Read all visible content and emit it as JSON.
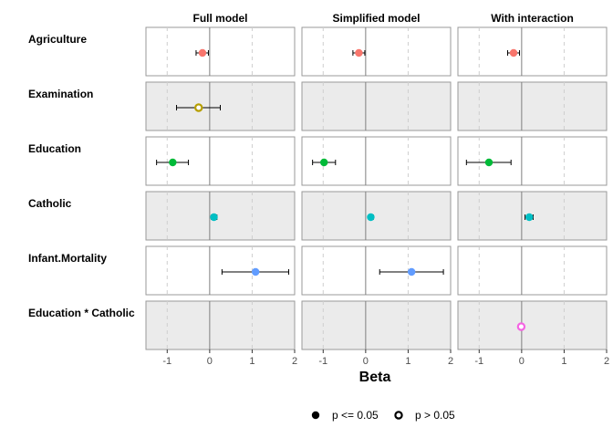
{
  "chart_data": {
    "type": "scatter",
    "xlabel": "Beta",
    "xlim": [
      -1.5,
      2
    ],
    "x_ticks": [
      {
        "v": -1,
        "label": "-1"
      },
      {
        "v": 0,
        "label": "0"
      },
      {
        "v": 1,
        "label": "1"
      },
      {
        "v": 2,
        "label": "2"
      }
    ],
    "reference_lines": {
      "solid": 0,
      "dashed": [
        -1,
        1
      ]
    },
    "columns": [
      "Full model",
      "Simplified model",
      "With interaction"
    ],
    "rows": [
      "Agriculture",
      "Examination",
      "Education",
      "Catholic",
      "Infant.Mortality",
      "Education * Catholic"
    ],
    "colors": {
      "Agriculture": "#F8766D",
      "Examination": "#B79F00",
      "Education": "#00BA38",
      "Catholic": "#00BFC4",
      "Infant.Mortality": "#619CFF",
      "Education * Catholic": "#F564E3"
    },
    "panel_fill": {
      "odd": "#ffffff",
      "even": "#ebebeb"
    },
    "points": [
      {
        "model": "Full model",
        "term": "Agriculture",
        "beta": -0.17,
        "lo": -0.32,
        "hi": -0.03,
        "significant": true
      },
      {
        "model": "Full model",
        "term": "Examination",
        "beta": -0.26,
        "lo": -0.78,
        "hi": 0.25,
        "significant": false
      },
      {
        "model": "Full model",
        "term": "Education",
        "beta": -0.87,
        "lo": -1.25,
        "hi": -0.5,
        "significant": true
      },
      {
        "model": "Full model",
        "term": "Catholic",
        "beta": 0.1,
        "lo": 0.04,
        "hi": 0.17,
        "significant": true
      },
      {
        "model": "Full model",
        "term": "Infant.Mortality",
        "beta": 1.08,
        "lo": 0.29,
        "hi": 1.86,
        "significant": true
      },
      {
        "model": "Simplified model",
        "term": "Agriculture",
        "beta": -0.16,
        "lo": -0.3,
        "hi": -0.02,
        "significant": true
      },
      {
        "model": "Simplified model",
        "term": "Education",
        "beta": -0.98,
        "lo": -1.25,
        "hi": -0.71,
        "significant": true
      },
      {
        "model": "Simplified model",
        "term": "Catholic",
        "beta": 0.12,
        "lo": 0.07,
        "hi": 0.18,
        "significant": true
      },
      {
        "model": "Simplified model",
        "term": "Infant.Mortality",
        "beta": 1.08,
        "lo": 0.33,
        "hi": 1.83,
        "significant": true
      },
      {
        "model": "With interaction",
        "term": "Agriculture",
        "beta": -0.19,
        "lo": -0.33,
        "hi": -0.05,
        "significant": true
      },
      {
        "model": "With interaction",
        "term": "Education",
        "beta": -0.77,
        "lo": -1.3,
        "hi": -0.25,
        "significant": true
      },
      {
        "model": "With interaction",
        "term": "Catholic",
        "beta": 0.18,
        "lo": 0.08,
        "hi": 0.27,
        "significant": true
      },
      {
        "model": "With interaction",
        "term": "Education * Catholic",
        "beta": -0.01,
        "lo": -0.02,
        "hi": 0.01,
        "significant": false
      }
    ],
    "legend": {
      "position": "bottom",
      "items": [
        {
          "shape": "filled-circle",
          "label": "p <= 0.05"
        },
        {
          "shape": "open-circle",
          "label": "p > 0.05"
        }
      ]
    }
  }
}
